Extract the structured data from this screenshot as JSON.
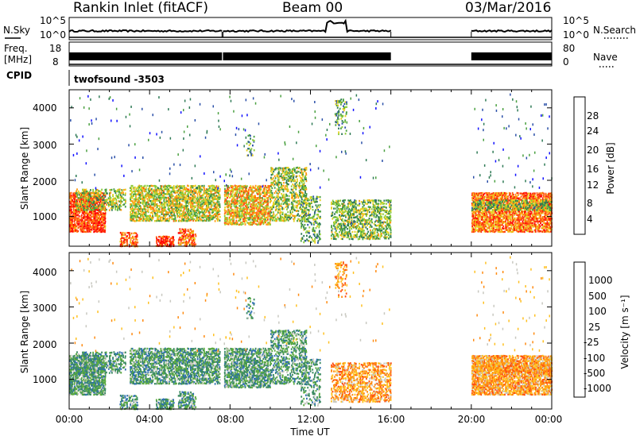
{
  "header": {
    "station": "Rankin Inlet (fitACF)",
    "beam": "Beam 00",
    "date": "03/Mar/2016"
  },
  "noise_panel": {
    "left_label": "N.Sky",
    "right_label": "N.Search",
    "left_ticks": [
      "10^5",
      "10^0"
    ],
    "right_ticks": [
      "10^5",
      "10^0"
    ]
  },
  "freq_panel": {
    "left_label_1": "Freq.",
    "left_label_2": "[MHz]",
    "right_label": "Nave",
    "left_ticks": [
      "18",
      "8"
    ],
    "right_ticks": [
      "80",
      "0"
    ]
  },
  "cpid": {
    "label": "CPID",
    "value": "twofsound -3503"
  },
  "x_axis": {
    "label": "Time UT",
    "ticks": [
      "00:00",
      "04:00",
      "08:00",
      "12:00",
      "16:00",
      "20:00",
      "00:00"
    ]
  },
  "power_panel": {
    "ylabel": "Slant Range [km]",
    "yticks": [
      "4000",
      "3000",
      "2000",
      "1000"
    ],
    "colorbar_label": "Power [dB]",
    "colorbar_ticks": [
      "28",
      "24",
      "20",
      "16",
      "12",
      "8",
      "4"
    ],
    "colors": [
      "#1010ff",
      "#2a4fa8",
      "#2e7a55",
      "#4aa040",
      "#8ccc3a",
      "#e8d020",
      "#ff9a10",
      "#ff6010",
      "#ff3010",
      "#ff0000"
    ]
  },
  "velocity_panel": {
    "ylabel": "Slant Range [km]",
    "yticks": [
      "4000",
      "3000",
      "2000",
      "1000"
    ],
    "colorbar_label": "Velocity [m s⁻¹]",
    "colorbar_ticks": [
      "1000",
      "500",
      "100",
      "25",
      "-25",
      "-100",
      "-500",
      "-1000"
    ],
    "colors": [
      "#1a3fa8",
      "#2e6fb0",
      "#3a8a60",
      "#5aaa40",
      "#c8c8c0",
      "#ffc020",
      "#ff8a10",
      "#ff5010",
      "#ff0000"
    ]
  },
  "chart_data": [
    {
      "type": "line",
      "title": "Rankin Inlet (fitACF)",
      "subtitle": "Beam 00",
      "x": [
        "00:00",
        "04:00",
        "08:00",
        "12:00",
        "16:00",
        "20:00",
        "00:00"
      ],
      "series": [
        {
          "name": "N.Sky",
          "segments": [
            [
              0.0,
              7.6
            ],
            [
              7.65,
              16.0
            ],
            [
              20.0,
              24.0
            ]
          ]
        }
      ],
      "ylabel": "N.Sky",
      "ylim": [
        "10^0",
        "10^5"
      ]
    },
    {
      "type": "heatmap",
      "title": "Power",
      "xlabel": "Time UT",
      "ylabel": "Slant Range [km]",
      "xlim": [
        0,
        24
      ],
      "ylim": [
        180,
        4500
      ],
      "colorbar": "Power [dB]",
      "zlim": [
        0,
        30
      ],
      "data_coverage_hours": [
        [
          0.0,
          7.6
        ],
        [
          7.65,
          16.0
        ],
        [
          20.0,
          24.0
        ]
      ]
    },
    {
      "type": "heatmap",
      "title": "Velocity",
      "xlabel": "Time UT",
      "ylabel": "Slant Range [km]",
      "xlim": [
        0,
        24
      ],
      "ylim": [
        180,
        4500
      ],
      "colorbar": "Velocity [m s-1]",
      "zlim": [
        -1000,
        1000
      ],
      "data_coverage_hours": [
        [
          0.0,
          7.6
        ],
        [
          7.65,
          16.0
        ],
        [
          20.0,
          24.0
        ]
      ]
    }
  ]
}
